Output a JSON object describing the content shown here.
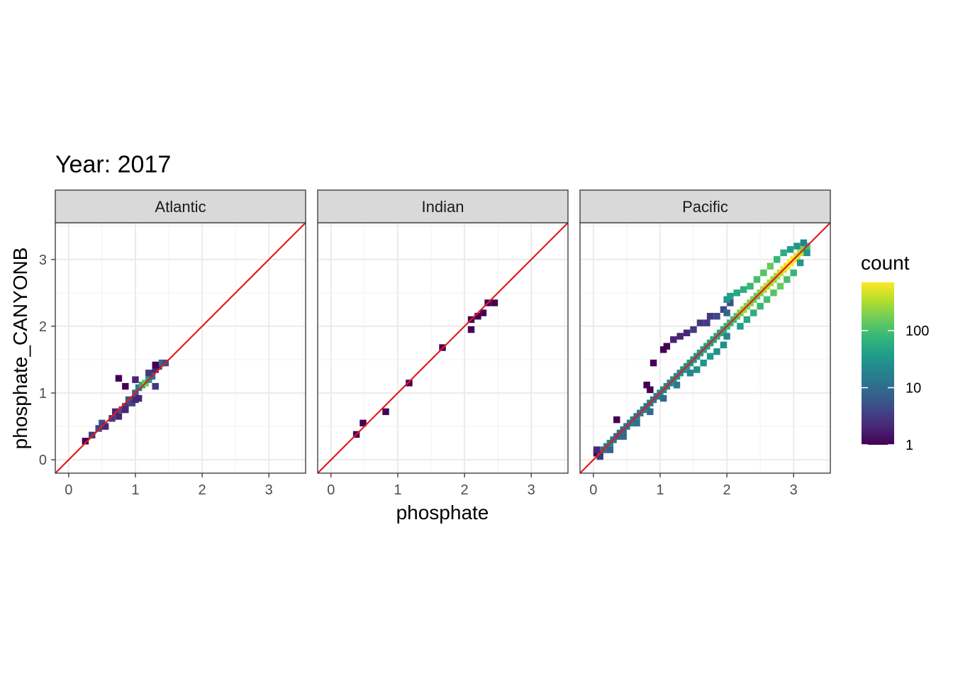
{
  "chart_data": {
    "type": "heatmap",
    "title": "Year: 2017",
    "xlabel": "phosphate",
    "ylabel": "phosphate_CANYONB",
    "xlim": [
      -0.2,
      3.55
    ],
    "ylim": [
      -0.2,
      3.55
    ],
    "x_ticks": [
      "0",
      "1",
      "2",
      "3"
    ],
    "y_ticks": [
      "0",
      "1",
      "2",
      "3"
    ],
    "grid": true,
    "reference_line": {
      "slope": 1,
      "intercept": 0,
      "color": "#e41a1c"
    },
    "bin_width": 0.1,
    "color_scale": {
      "name": "count",
      "type": "log10",
      "palette": "viridis",
      "min": 1,
      "max": 700,
      "breaks": [
        1,
        10,
        100
      ],
      "break_labels": [
        "1",
        "10",
        "100"
      ]
    },
    "panels": [
      {
        "label": "Atlantic",
        "bins": [
          [
            0.25,
            0.28,
            1
          ],
          [
            0.35,
            0.37,
            3
          ],
          [
            0.45,
            0.47,
            4
          ],
          [
            0.5,
            0.55,
            5
          ],
          [
            0.55,
            0.5,
            2
          ],
          [
            0.65,
            0.62,
            3
          ],
          [
            0.7,
            0.72,
            2
          ],
          [
            0.75,
            0.65,
            2
          ],
          [
            0.8,
            0.75,
            5
          ],
          [
            0.85,
            0.8,
            3
          ],
          [
            0.85,
            0.75,
            2
          ],
          [
            0.9,
            0.9,
            6
          ],
          [
            0.95,
            0.85,
            4
          ],
          [
            0.75,
            1.22,
            1
          ],
          [
            0.85,
            1.1,
            1
          ],
          [
            1.0,
            1.0,
            8
          ],
          [
            1.05,
            1.08,
            15
          ],
          [
            1.1,
            1.12,
            60
          ],
          [
            1.15,
            1.15,
            150
          ],
          [
            1.2,
            1.2,
            40
          ],
          [
            1.25,
            1.25,
            12
          ],
          [
            1.2,
            1.3,
            3
          ],
          [
            1.3,
            1.35,
            2
          ],
          [
            1.3,
            1.1,
            3
          ],
          [
            1.35,
            1.4,
            2
          ],
          [
            1.4,
            1.45,
            10
          ],
          [
            1.45,
            1.45,
            5
          ],
          [
            1.05,
            0.92,
            2
          ],
          [
            1.0,
            0.9,
            2
          ],
          [
            1.0,
            1.2,
            2
          ],
          [
            1.3,
            1.42,
            1
          ]
        ]
      },
      {
        "label": "Indian",
        "bins": [
          [
            0.38,
            0.38,
            1
          ],
          [
            0.48,
            0.55,
            1
          ],
          [
            0.82,
            0.72,
            1
          ],
          [
            1.17,
            1.15,
            1
          ],
          [
            1.67,
            1.68,
            1
          ],
          [
            2.1,
            2.1,
            1
          ],
          [
            2.1,
            1.95,
            1
          ],
          [
            2.2,
            2.15,
            1
          ],
          [
            2.28,
            2.2,
            1
          ],
          [
            2.35,
            2.35,
            1
          ],
          [
            2.45,
            2.35,
            1
          ]
        ]
      },
      {
        "label": "Pacific",
        "bins": [
          [
            0.05,
            0.1,
            1
          ],
          [
            0.1,
            0.1,
            5
          ],
          [
            0.15,
            0.15,
            10
          ],
          [
            0.2,
            0.2,
            15
          ],
          [
            0.25,
            0.25,
            20
          ],
          [
            0.3,
            0.3,
            12
          ],
          [
            0.35,
            0.35,
            8
          ],
          [
            0.4,
            0.4,
            8
          ],
          [
            0.45,
            0.45,
            10
          ],
          [
            0.5,
            0.5,
            12
          ],
          [
            0.55,
            0.55,
            15
          ],
          [
            0.6,
            0.6,
            15
          ],
          [
            0.65,
            0.65,
            15
          ],
          [
            0.7,
            0.7,
            15
          ],
          [
            0.75,
            0.75,
            15
          ],
          [
            0.8,
            0.8,
            15
          ],
          [
            0.85,
            0.85,
            15
          ],
          [
            0.9,
            0.9,
            15
          ],
          [
            0.95,
            0.95,
            15
          ],
          [
            1.0,
            1.0,
            20
          ],
          [
            1.05,
            1.05,
            20
          ],
          [
            1.1,
            1.1,
            20
          ],
          [
            1.15,
            1.15,
            20
          ],
          [
            1.2,
            1.2,
            25
          ],
          [
            1.25,
            1.25,
            25
          ],
          [
            1.3,
            1.3,
            25
          ],
          [
            1.35,
            1.35,
            25
          ],
          [
            1.4,
            1.4,
            30
          ],
          [
            1.45,
            1.45,
            30
          ],
          [
            1.5,
            1.5,
            30
          ],
          [
            1.55,
            1.55,
            35
          ],
          [
            1.6,
            1.6,
            35
          ],
          [
            1.65,
            1.65,
            40
          ],
          [
            1.7,
            1.7,
            40
          ],
          [
            1.75,
            1.75,
            40
          ],
          [
            1.8,
            1.8,
            45
          ],
          [
            1.85,
            1.85,
            50
          ],
          [
            1.9,
            1.9,
            50
          ],
          [
            1.95,
            1.95,
            60
          ],
          [
            2.0,
            2.0,
            70
          ],
          [
            2.05,
            2.05,
            80
          ],
          [
            2.1,
            2.1,
            90
          ],
          [
            2.15,
            2.15,
            120
          ],
          [
            2.2,
            2.2,
            200
          ],
          [
            2.25,
            2.25,
            250
          ],
          [
            2.3,
            2.3,
            220
          ],
          [
            2.35,
            2.35,
            200
          ],
          [
            2.4,
            2.4,
            180
          ],
          [
            2.45,
            2.45,
            150
          ],
          [
            2.5,
            2.5,
            200
          ],
          [
            2.55,
            2.55,
            300
          ],
          [
            2.6,
            2.6,
            350
          ],
          [
            2.65,
            2.65,
            300
          ],
          [
            2.7,
            2.7,
            250
          ],
          [
            2.75,
            2.75,
            300
          ],
          [
            2.8,
            2.8,
            400
          ],
          [
            2.85,
            2.85,
            500
          ],
          [
            2.9,
            2.9,
            600
          ],
          [
            2.95,
            2.95,
            700
          ],
          [
            3.0,
            3.0,
            650
          ],
          [
            3.05,
            3.05,
            500
          ],
          [
            3.1,
            3.1,
            400
          ],
          [
            3.15,
            3.15,
            200
          ],
          [
            3.2,
            3.2,
            100
          ],
          [
            0.1,
            0.05,
            3
          ],
          [
            0.25,
            0.15,
            8
          ],
          [
            0.45,
            0.35,
            10
          ],
          [
            0.65,
            0.55,
            12
          ],
          [
            0.85,
            0.72,
            10
          ],
          [
            1.05,
            0.92,
            10
          ],
          [
            1.25,
            1.12,
            15
          ],
          [
            1.45,
            1.3,
            20
          ],
          [
            1.55,
            1.35,
            25
          ],
          [
            1.65,
            1.45,
            30
          ],
          [
            1.75,
            1.55,
            35
          ],
          [
            1.85,
            1.62,
            30
          ],
          [
            1.95,
            1.72,
            25
          ],
          [
            2.0,
            1.85,
            20
          ],
          [
            2.2,
            2.0,
            40
          ],
          [
            2.3,
            2.1,
            50
          ],
          [
            2.4,
            2.2,
            60
          ],
          [
            2.5,
            2.3,
            80
          ],
          [
            2.6,
            2.4,
            100
          ],
          [
            2.7,
            2.5,
            120
          ],
          [
            2.8,
            2.6,
            150
          ],
          [
            2.9,
            2.7,
            100
          ],
          [
            3.0,
            2.8,
            80
          ],
          [
            3.1,
            2.95,
            30
          ],
          [
            3.2,
            3.1,
            30
          ],
          [
            0.85,
            1.05,
            1
          ],
          [
            0.8,
            1.12,
            1
          ],
          [
            0.9,
            1.45,
            1
          ],
          [
            1.05,
            1.65,
            1
          ],
          [
            1.1,
            1.7,
            1
          ],
          [
            1.2,
            1.8,
            2
          ],
          [
            1.3,
            1.85,
            2
          ],
          [
            1.4,
            1.9,
            2
          ],
          [
            1.5,
            1.95,
            3
          ],
          [
            1.6,
            2.05,
            3
          ],
          [
            1.7,
            2.05,
            3
          ],
          [
            1.75,
            2.15,
            3
          ],
          [
            1.85,
            2.15,
            4
          ],
          [
            1.95,
            2.25,
            4
          ],
          [
            2.05,
            2.35,
            5
          ],
          [
            2.0,
            2.2,
            8
          ],
          [
            2.0,
            2.4,
            30
          ],
          [
            2.05,
            2.45,
            40
          ],
          [
            2.15,
            2.5,
            50
          ],
          [
            2.25,
            2.55,
            60
          ],
          [
            2.35,
            2.6,
            80
          ],
          [
            2.45,
            2.7,
            100
          ],
          [
            2.55,
            2.8,
            120
          ],
          [
            2.65,
            2.9,
            150
          ],
          [
            2.75,
            3.0,
            80
          ],
          [
            2.85,
            3.1,
            60
          ],
          [
            2.95,
            3.15,
            40
          ],
          [
            3.05,
            3.2,
            30
          ],
          [
            3.15,
            3.25,
            20
          ],
          [
            0.35,
            0.6,
            1
          ],
          [
            0.05,
            0.15,
            2
          ]
        ]
      }
    ]
  }
}
